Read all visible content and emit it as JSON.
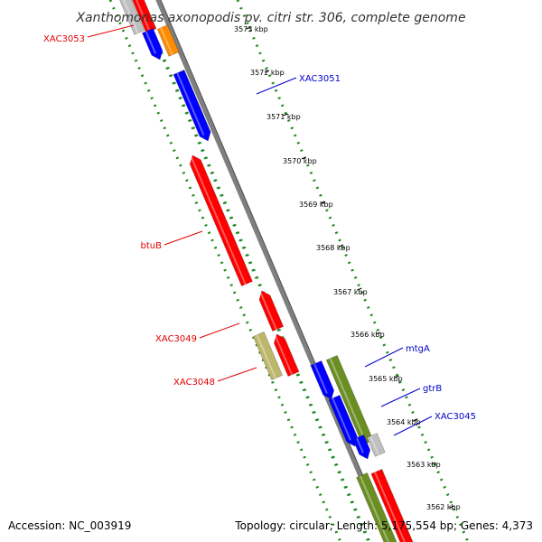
{
  "title": "Xanthomonas axonopodis pv. citri str. 306, complete genome",
  "footer": {
    "accession": "Accession: NC_003919",
    "summary": "Topology: circular; Length: 5,175,554 bp; Genes: 4,373"
  },
  "ticks": [
    "3573 kbp",
    "3572 kbp",
    "3571 kbp",
    "3570 kbp",
    "3569 kbp",
    "3568 kbp",
    "3567 kbp",
    "3566 kbp",
    "3565 kbp",
    "3564 kbp",
    "3563 kbp",
    "3562 kbp"
  ],
  "labels": {
    "reverse": [
      "XAC3053",
      "btuB",
      "XAC3049",
      "XAC3048"
    ],
    "forward": [
      "XAC3051",
      "mtgA",
      "gtrB",
      "XAC3045"
    ]
  },
  "colors": {
    "backbone": "#7f7f7f",
    "dots": "#1f8a1f",
    "reverse_label": "#e00000",
    "forward_label": "#0000cc",
    "red": "#ff0000",
    "blue": "#0000ff",
    "orange": "#ff8c00",
    "olive": "#6b8e23",
    "khaki": "#bdb76b",
    "grey": "#bfbfbf"
  }
}
